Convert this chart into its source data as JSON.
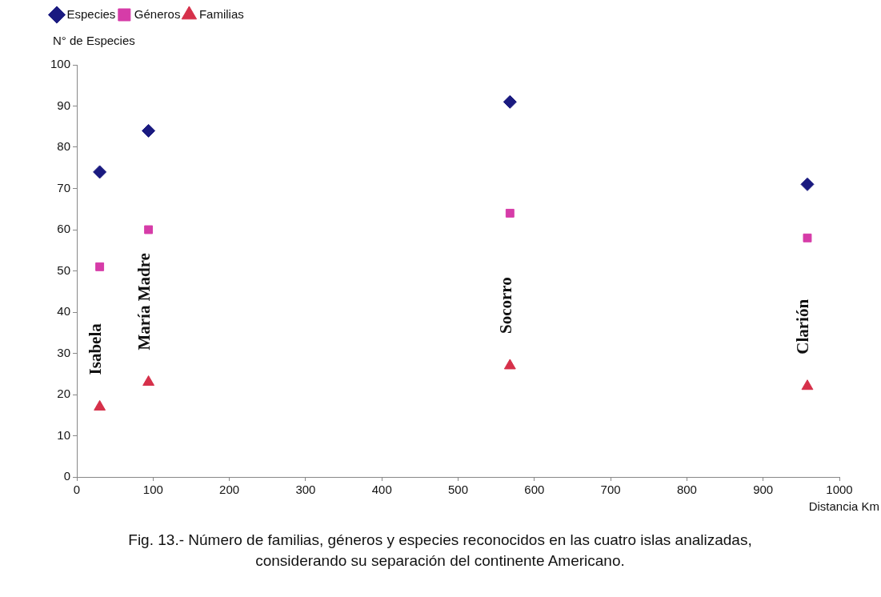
{
  "chart_data": {
    "type": "scatter",
    "xlabel": "Distancia Km",
    "ylabel": "N° de Especies",
    "xlim": [
      0,
      1000
    ],
    "xticks": [
      0,
      100,
      200,
      300,
      400,
      500,
      600,
      700,
      800,
      900,
      1000
    ],
    "ylim": [
      0,
      100
    ],
    "yticks": [
      0,
      10,
      20,
      30,
      40,
      50,
      60,
      70,
      80,
      90,
      100
    ],
    "x": [
      30,
      94,
      568,
      958
    ],
    "series": [
      {
        "name": "Especies",
        "color": "#1a1a80",
        "marker": "diamond",
        "values": [
          74,
          84,
          91,
          71
        ]
      },
      {
        "name": "Géneros",
        "color": "#d63ca8",
        "marker": "square",
        "values": [
          51,
          60,
          64,
          58
        ]
      },
      {
        "name": "Familias",
        "color": "#d6304a",
        "marker": "triangle",
        "values": [
          17,
          23,
          27,
          22
        ]
      }
    ],
    "legend": "top left",
    "grid": false,
    "annotations": [
      {
        "text": "Isabela",
        "x": 30,
        "y": 17
      },
      {
        "text": "María Madre",
        "x": 94,
        "y": 23
      },
      {
        "text": "Socorro",
        "x": 568,
        "y": 27
      },
      {
        "text": "Clarión",
        "x": 958,
        "y": 22
      },
      "Fig. 13.- Número de familias, géneros y especies reconocidos en las cuatro islas analizadas, considerando su separación del continente Americano."
    ]
  }
}
